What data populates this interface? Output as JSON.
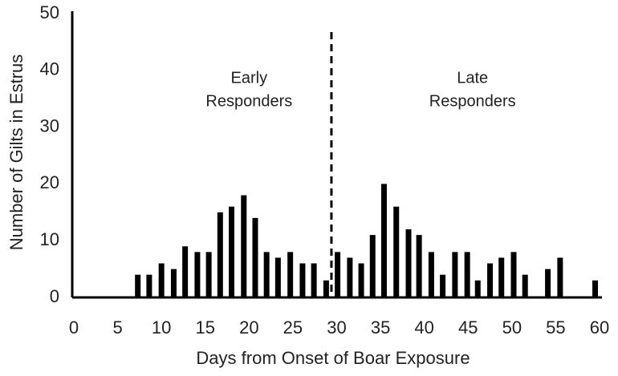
{
  "chart_data": {
    "type": "bar",
    "x_label": "Days from Onset of Boar Exposure",
    "y_label": "Number of Gilts in Estrus",
    "annotations": [
      [
        "Early",
        "Responders"
      ],
      [
        "Late",
        "Responders"
      ]
    ],
    "annotation_x": [
      20,
      45.5
    ],
    "divider_x": 29.4,
    "x": [
      7.3,
      8.6,
      10.0,
      11.4,
      12.7,
      14.1,
      15.4,
      16.7,
      18.0,
      19.4,
      20.7,
      22.0,
      23.3,
      24.7,
      26.1,
      27.4,
      28.8,
      30.1,
      31.5,
      32.8,
      34.1,
      35.4,
      36.8,
      38.2,
      39.4,
      40.8,
      42.1,
      43.5,
      44.9,
      46.1,
      47.5,
      48.8,
      50.2,
      51.5,
      54.1,
      55.5,
      59.5
    ],
    "values": [
      4,
      4,
      6,
      5,
      9,
      8,
      8,
      15,
      16,
      18,
      14,
      8,
      7,
      8,
      6,
      6,
      3,
      8,
      7,
      6,
      11,
      20,
      16,
      12,
      11,
      8,
      4,
      8,
      8,
      3,
      6,
      7,
      8,
      4,
      5,
      7,
      3
    ],
    "color": "#000000",
    "xlim": [
      0,
      60
    ],
    "xticks": [
      0,
      5,
      10,
      15,
      20,
      25,
      30,
      35,
      40,
      45,
      50,
      55,
      60
    ],
    "ylim": [
      0,
      50
    ],
    "yticks": [
      0,
      10,
      20,
      30,
      40,
      50
    ]
  }
}
